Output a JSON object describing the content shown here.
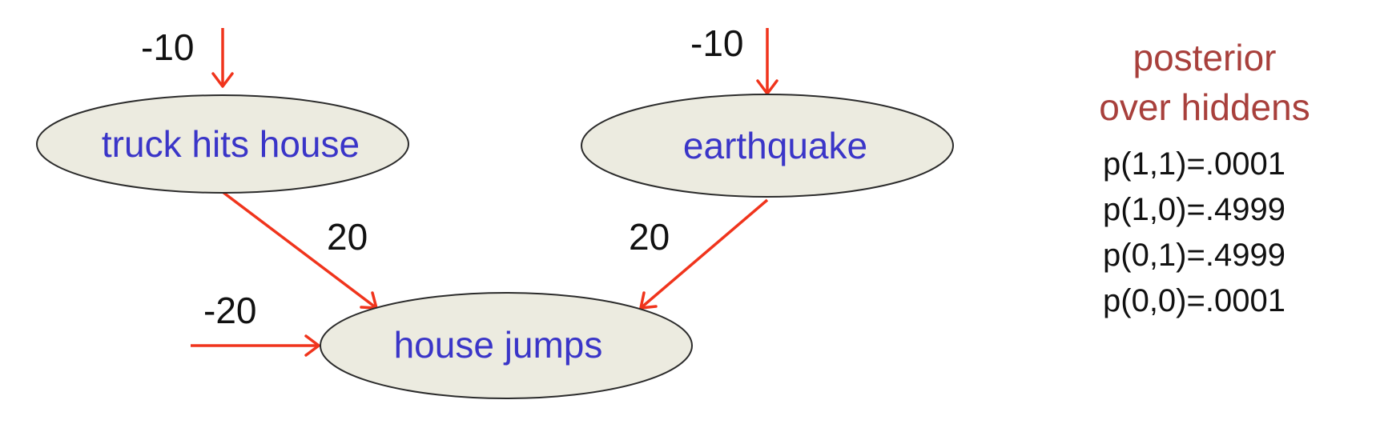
{
  "colors": {
    "node_fill": "#ecebe0",
    "node_text": "#3a35c8",
    "arrow": "#f0341c",
    "posterior_title": "#a8403c",
    "numbers": "#111111"
  },
  "nodes": {
    "truck": {
      "label": "truck hits house",
      "bias": "-10"
    },
    "earthquake": {
      "label": "earthquake",
      "bias": "-10"
    },
    "house": {
      "label": "house jumps",
      "bias": "-20"
    }
  },
  "edges": {
    "truck_to_house": {
      "weight": "20"
    },
    "earthquake_to_house": {
      "weight": "20"
    }
  },
  "posterior": {
    "title_line1": "posterior",
    "title_line2": "over hiddens",
    "values": [
      "p(1,1)=.0001",
      "p(1,0)=.4999",
      "p(0,1)=.4999",
      "p(0,0)=.0001"
    ]
  }
}
